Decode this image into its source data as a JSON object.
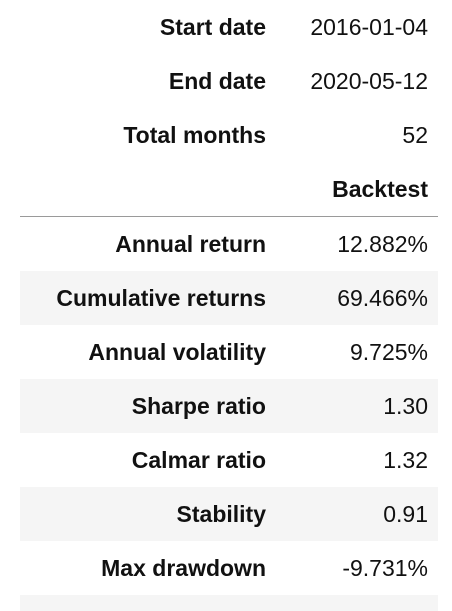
{
  "meta_rows": [
    {
      "label": "Start date",
      "value": "2016-01-04"
    },
    {
      "label": "End date",
      "value": "2020-05-12"
    },
    {
      "label": "Total months",
      "value": "52"
    }
  ],
  "column_header": "Backtest",
  "metric_rows": [
    {
      "label": "Annual return",
      "value": "12.882%"
    },
    {
      "label": "Cumulative returns",
      "value": "69.466%"
    },
    {
      "label": "Annual volatility",
      "value": "9.725%"
    },
    {
      "label": "Sharpe ratio",
      "value": "1.30"
    },
    {
      "label": "Calmar ratio",
      "value": "1.32"
    },
    {
      "label": "Stability",
      "value": "0.91"
    },
    {
      "label": "Max drawdown",
      "value": "-9.731%"
    }
  ],
  "colors": {
    "row_shade": "#f5f5f5",
    "header_rule": "#9a9a9a",
    "text": "#111111"
  }
}
